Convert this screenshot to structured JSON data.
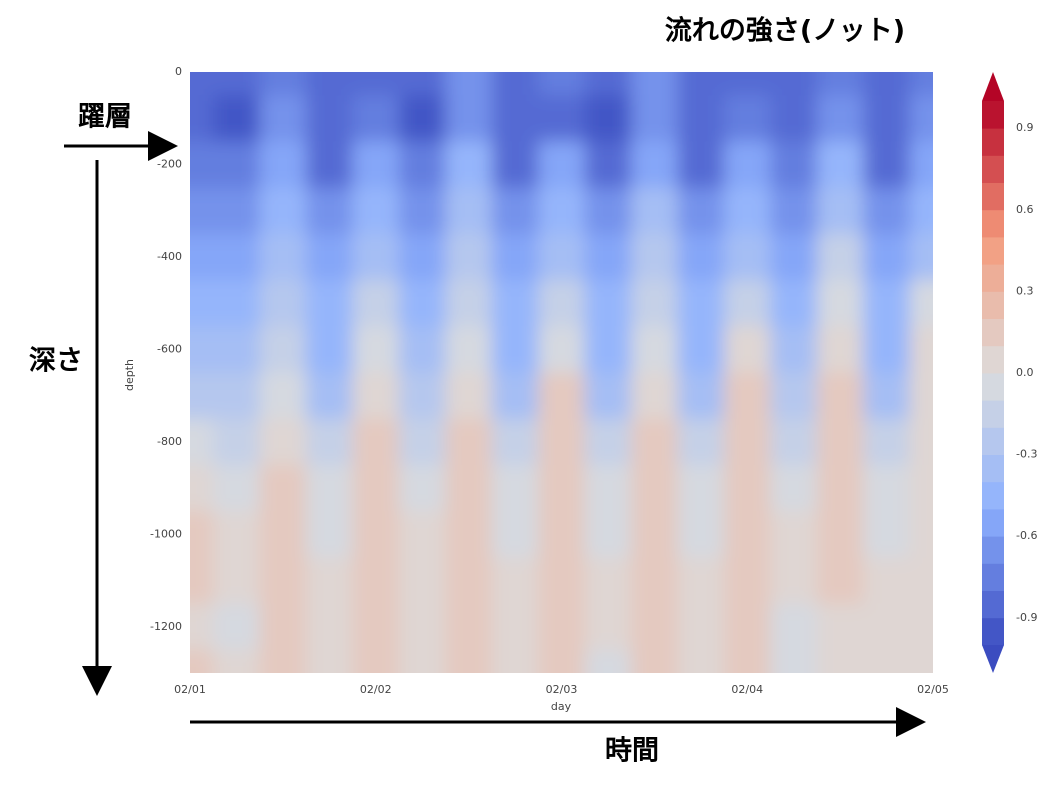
{
  "chart_data": {
    "type": "contour",
    "title": "流れの強さ(ノット)",
    "xlabel": "day",
    "ylabel": "depth",
    "annotations": {
      "thermocline": "躍層",
      "depth_arrow": "深さ",
      "time_arrow": "時間"
    },
    "x": [
      0,
      0.25,
      0.5,
      0.75,
      1,
      1.25,
      1.5,
      1.75,
      2,
      2.25,
      2.5,
      2.75,
      3,
      3.25,
      3.5,
      3.75,
      4
    ],
    "y": [
      0,
      -100,
      -200,
      -300,
      -400,
      -500,
      -600,
      -700,
      -800,
      -900,
      -1000,
      -1100,
      -1200,
      -1300
    ],
    "z": [
      [
        -0.8,
        -0.85,
        -0.75,
        -0.85,
        -0.8,
        -0.85,
        -0.7,
        -0.8,
        -0.75,
        -0.85,
        -0.7,
        -0.8,
        -0.8,
        -0.85,
        -0.75,
        -0.8,
        -0.75
      ],
      [
        -0.8,
        -0.9,
        -0.7,
        -0.8,
        -0.75,
        -0.9,
        -0.7,
        -0.8,
        -0.8,
        -0.9,
        -0.65,
        -0.85,
        -0.75,
        -0.8,
        -0.7,
        -0.85,
        -0.7
      ],
      [
        -0.75,
        -0.75,
        -0.55,
        -0.8,
        -0.6,
        -0.75,
        -0.5,
        -0.85,
        -0.6,
        -0.8,
        -0.55,
        -0.8,
        -0.55,
        -0.75,
        -0.45,
        -0.8,
        -0.55
      ],
      [
        -0.65,
        -0.65,
        -0.45,
        -0.7,
        -0.4,
        -0.65,
        -0.35,
        -0.7,
        -0.45,
        -0.7,
        -0.35,
        -0.7,
        -0.4,
        -0.65,
        -0.3,
        -0.7,
        -0.45
      ],
      [
        -0.55,
        -0.55,
        -0.35,
        -0.6,
        -0.3,
        -0.55,
        -0.25,
        -0.6,
        -0.35,
        -0.6,
        -0.25,
        -0.6,
        -0.3,
        -0.55,
        -0.2,
        -0.6,
        -0.35
      ],
      [
        -0.45,
        -0.45,
        -0.25,
        -0.5,
        -0.15,
        -0.45,
        -0.15,
        -0.5,
        -0.2,
        -0.5,
        -0.15,
        -0.5,
        -0.15,
        -0.45,
        -0.05,
        -0.5,
        -0.1
      ],
      [
        -0.35,
        -0.35,
        -0.15,
        -0.4,
        -0.05,
        -0.35,
        -0.05,
        -0.4,
        -0.05,
        -0.4,
        -0.05,
        -0.4,
        0.0,
        -0.35,
        0.05,
        -0.4,
        0.0
      ],
      [
        -0.25,
        -0.25,
        -0.05,
        -0.3,
        0.05,
        -0.25,
        0.05,
        -0.3,
        0.1,
        -0.3,
        0.05,
        -0.3,
        0.1,
        -0.25,
        0.1,
        -0.3,
        0.05
      ],
      [
        -0.1,
        -0.15,
        0.05,
        -0.2,
        0.1,
        -0.15,
        0.1,
        -0.2,
        0.15,
        -0.2,
        0.1,
        -0.2,
        0.15,
        -0.15,
        0.15,
        -0.2,
        0.05
      ],
      [
        0.05,
        -0.05,
        0.1,
        -0.1,
        0.15,
        -0.05,
        0.15,
        -0.1,
        0.1,
        -0.1,
        0.15,
        -0.1,
        0.1,
        -0.05,
        0.15,
        -0.1,
        0.05
      ],
      [
        0.1,
        0.0,
        0.1,
        -0.05,
        0.2,
        0.0,
        0.15,
        -0.05,
        0.1,
        -0.05,
        0.2,
        -0.05,
        0.1,
        0.0,
        0.15,
        -0.05,
        0.05
      ],
      [
        0.1,
        0.0,
        0.15,
        0.0,
        0.2,
        0.05,
        0.15,
        0.0,
        0.15,
        0.0,
        0.15,
        0.0,
        0.1,
        0.0,
        0.1,
        0.0,
        0.05
      ],
      [
        0.05,
        -0.05,
        0.1,
        0.0,
        0.15,
        0.05,
        0.1,
        0.0,
        0.15,
        0.0,
        0.1,
        0.0,
        0.1,
        -0.05,
        0.05,
        0.0,
        0.05
      ],
      [
        0.1,
        0.0,
        0.1,
        0.0,
        0.15,
        0.0,
        0.1,
        0.0,
        0.15,
        -0.05,
        0.1,
        0.0,
        0.1,
        -0.05,
        0.05,
        0.0,
        0.05
      ]
    ],
    "xlim": [
      0,
      4
    ],
    "xticks": [
      {
        "value": 0,
        "label": "02/01"
      },
      {
        "value": 1,
        "label": "02/02"
      },
      {
        "value": 2,
        "label": "02/03"
      },
      {
        "value": 3,
        "label": "02/04"
      },
      {
        "value": 4,
        "label": "02/05"
      }
    ],
    "ylim": [
      -1300,
      0
    ],
    "yticks": [
      0,
      -200,
      -400,
      -600,
      -800,
      -1000,
      -1200
    ],
    "clim": [
      -1,
      1
    ],
    "cticks": [
      -0.9,
      -0.6,
      -0.3,
      {
        "value": 0,
        "label": "0.0"
      },
      0.3,
      0.6,
      0.9
    ],
    "cmap": "coolwarm"
  }
}
